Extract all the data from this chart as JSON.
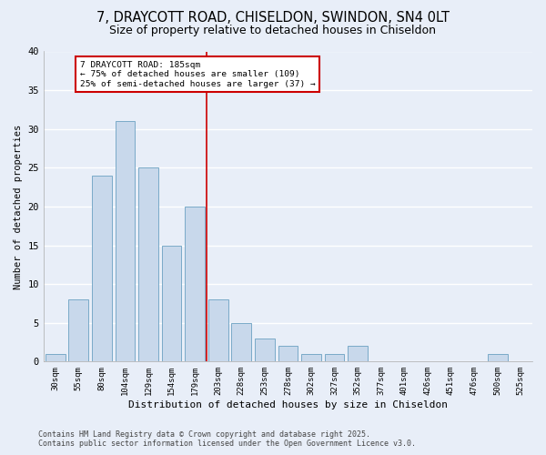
{
  "title_line1": "7, DRAYCOTT ROAD, CHISELDON, SWINDON, SN4 0LT",
  "title_line2": "Size of property relative to detached houses in Chiseldon",
  "xlabel": "Distribution of detached houses by size in Chiseldon",
  "ylabel": "Number of detached properties",
  "categories": [
    "30sqm",
    "55sqm",
    "80sqm",
    "104sqm",
    "129sqm",
    "154sqm",
    "179sqm",
    "203sqm",
    "228sqm",
    "253sqm",
    "278sqm",
    "302sqm",
    "327sqm",
    "352sqm",
    "377sqm",
    "401sqm",
    "426sqm",
    "451sqm",
    "476sqm",
    "500sqm",
    "525sqm"
  ],
  "values": [
    1,
    8,
    24,
    31,
    25,
    15,
    20,
    8,
    5,
    3,
    2,
    1,
    1,
    2,
    0,
    0,
    0,
    0,
    0,
    1,
    0
  ],
  "bar_color": "#c8d8eb",
  "bar_edge_color": "#7aaac8",
  "bar_width": 0.85,
  "vline_x": 6.5,
  "vline_color": "#cc0000",
  "annotation_title": "7 DRAYCOTT ROAD: 185sqm",
  "annotation_line1": "← 75% of detached houses are smaller (109)",
  "annotation_line2": "25% of semi-detached houses are larger (37) →",
  "annotation_box_color": "#ffffff",
  "annotation_box_edge": "#cc0000",
  "ylim": [
    0,
    40
  ],
  "yticks": [
    0,
    5,
    10,
    15,
    20,
    25,
    30,
    35,
    40
  ],
  "background_color": "#e8eef8",
  "grid_color": "#ffffff",
  "footnote_line1": "Contains HM Land Registry data © Crown copyright and database right 2025.",
  "footnote_line2": "Contains public sector information licensed under the Open Government Licence v3.0."
}
